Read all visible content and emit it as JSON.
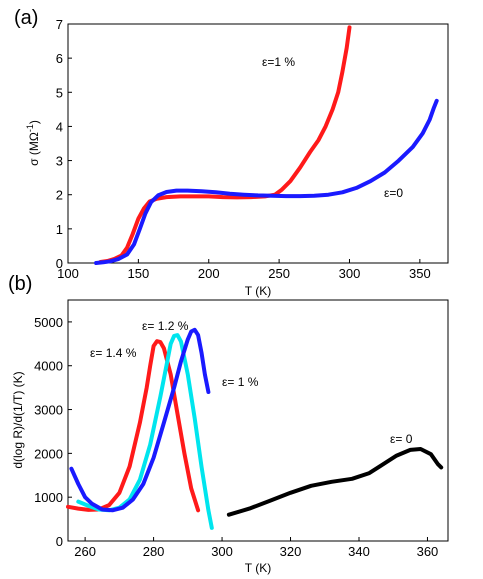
{
  "chart_data": [
    {
      "panel_label": "(a)",
      "type": "line",
      "xlabel": "T  (K)",
      "ylabel": "σ (MΩ",
      "ylabel_sup": "-1",
      "ylabel_close": ")",
      "xlim": [
        100,
        370
      ],
      "ylim": [
        0,
        7
      ],
      "xticks": [
        "100",
        "150",
        "200",
        "250",
        "300",
        "350"
      ],
      "yticks": [
        "0",
        "1",
        "2",
        "3",
        "4",
        "5",
        "6",
        "7"
      ],
      "annotations": [
        "ε=1 %",
        "ε=0"
      ],
      "series": [
        {
          "name": "ε=1 %",
          "color": "#ff1a1a",
          "points": [
            [
              123,
              0.03
            ],
            [
              128,
              0.06
            ],
            [
              133,
              0.12
            ],
            [
              138,
              0.22
            ],
            [
              142,
              0.45
            ],
            [
              146,
              0.85
            ],
            [
              150,
              1.3
            ],
            [
              154,
              1.6
            ],
            [
              158,
              1.8
            ],
            [
              163,
              1.88
            ],
            [
              170,
              1.93
            ],
            [
              180,
              1.95
            ],
            [
              190,
              1.95
            ],
            [
              200,
              1.95
            ],
            [
              210,
              1.93
            ],
            [
              220,
              1.92
            ],
            [
              230,
              1.93
            ],
            [
              240,
              1.95
            ],
            [
              247,
              2.0
            ],
            [
              252,
              2.15
            ],
            [
              258,
              2.4
            ],
            [
              265,
              2.8
            ],
            [
              272,
              3.25
            ],
            [
              278,
              3.6
            ],
            [
              283,
              4.0
            ],
            [
              288,
              4.5
            ],
            [
              292,
              5.0
            ],
            [
              295,
              5.6
            ],
            [
              298,
              6.3
            ],
            [
              300,
              6.9
            ]
          ]
        },
        {
          "name": "ε=0",
          "color": "#1a1aff",
          "points": [
            [
              120,
              0.0
            ],
            [
              125,
              0.02
            ],
            [
              130,
              0.05
            ],
            [
              136,
              0.12
            ],
            [
              142,
              0.25
            ],
            [
              147,
              0.55
            ],
            [
              151,
              1.0
            ],
            [
              155,
              1.45
            ],
            [
              159,
              1.78
            ],
            [
              164,
              1.98
            ],
            [
              170,
              2.08
            ],
            [
              177,
              2.12
            ],
            [
              185,
              2.12
            ],
            [
              195,
              2.1
            ],
            [
              205,
              2.07
            ],
            [
              215,
              2.03
            ],
            [
              225,
              2.0
            ],
            [
              235,
              1.98
            ],
            [
              245,
              1.97
            ],
            [
              255,
              1.96
            ],
            [
              265,
              1.96
            ],
            [
              275,
              1.97
            ],
            [
              285,
              2.0
            ],
            [
              295,
              2.07
            ],
            [
              305,
              2.2
            ],
            [
              315,
              2.4
            ],
            [
              325,
              2.65
            ],
            [
              335,
              3.0
            ],
            [
              345,
              3.4
            ],
            [
              352,
              3.8
            ],
            [
              357,
              4.2
            ],
            [
              360,
              4.55
            ],
            [
              362,
              4.75
            ]
          ]
        }
      ]
    },
    {
      "panel_label": "(b)",
      "type": "line",
      "xlabel": "T  (K)",
      "ylabel": "d(log R)/d(1/T)   (K)",
      "xlim": [
        255,
        366
      ],
      "ylim": [
        0,
        5500
      ],
      "xticks": [
        "260",
        "280",
        "300",
        "320",
        "340",
        "360"
      ],
      "yticks": [
        "0",
        "1000",
        "2000",
        "3000",
        "4000",
        "5000"
      ],
      "annotations": [
        "ε= 1.4 %",
        "ε= 1.2 %",
        "ε= 1 %",
        "ε= 0"
      ],
      "series": [
        {
          "name": "ε= 1.4 %",
          "color": "#ff1a1a",
          "points": [
            [
              255,
              780
            ],
            [
              258,
              740
            ],
            [
              261,
              710
            ],
            [
              264,
              720
            ],
            [
              267,
              820
            ],
            [
              270,
              1100
            ],
            [
              273,
              1700
            ],
            [
              276,
              2700
            ],
            [
              278,
              3500
            ],
            [
              279,
              4000
            ],
            [
              280,
              4450
            ],
            [
              281,
              4560
            ],
            [
              282,
              4540
            ],
            [
              283,
              4400
            ],
            [
              285,
              3800
            ],
            [
              287,
              2900
            ],
            [
              289,
              2000
            ],
            [
              291,
              1200
            ],
            [
              293,
              700
            ]
          ]
        },
        {
          "name": "ε= 1.2 %",
          "color": "#00e5ee",
          "points": [
            [
              258,
              900
            ],
            [
              261,
              800
            ],
            [
              264,
              720
            ],
            [
              267,
              700
            ],
            [
              270,
              760
            ],
            [
              273,
              950
            ],
            [
              276,
              1400
            ],
            [
              279,
              2200
            ],
            [
              282,
              3300
            ],
            [
              284,
              4100
            ],
            [
              285,
              4500
            ],
            [
              286,
              4680
            ],
            [
              287,
              4700
            ],
            [
              288,
              4550
            ],
            [
              290,
              3800
            ],
            [
              292,
              2800
            ],
            [
              294,
              1700
            ],
            [
              296,
              700
            ],
            [
              297,
              300
            ]
          ]
        },
        {
          "name": "ε= 1 %",
          "color": "#1a1aff",
          "points": [
            [
              256,
              1650
            ],
            [
              258,
              1300
            ],
            [
              260,
              1000
            ],
            [
              262,
              850
            ],
            [
              265,
              720
            ],
            [
              268,
              700
            ],
            [
              271,
              760
            ],
            [
              274,
              950
            ],
            [
              277,
              1300
            ],
            [
              280,
              1900
            ],
            [
              283,
              2700
            ],
            [
              286,
              3500
            ],
            [
              288,
              4100
            ],
            [
              290,
              4600
            ],
            [
              291,
              4780
            ],
            [
              292,
              4820
            ],
            [
              293,
              4700
            ],
            [
              294,
              4300
            ],
            [
              295,
              3800
            ],
            [
              296,
              3400
            ]
          ]
        },
        {
          "name": "ε= 0",
          "color": "#000000",
          "points": [
            [
              302,
              600
            ],
            [
              308,
              740
            ],
            [
              314,
              920
            ],
            [
              320,
              1100
            ],
            [
              326,
              1260
            ],
            [
              332,
              1350
            ],
            [
              338,
              1420
            ],
            [
              343,
              1550
            ],
            [
              347,
              1750
            ],
            [
              351,
              1950
            ],
            [
              355,
              2080
            ],
            [
              358,
              2100
            ],
            [
              361,
              1980
            ],
            [
              363,
              1760
            ],
            [
              364,
              1680
            ]
          ]
        }
      ]
    }
  ]
}
